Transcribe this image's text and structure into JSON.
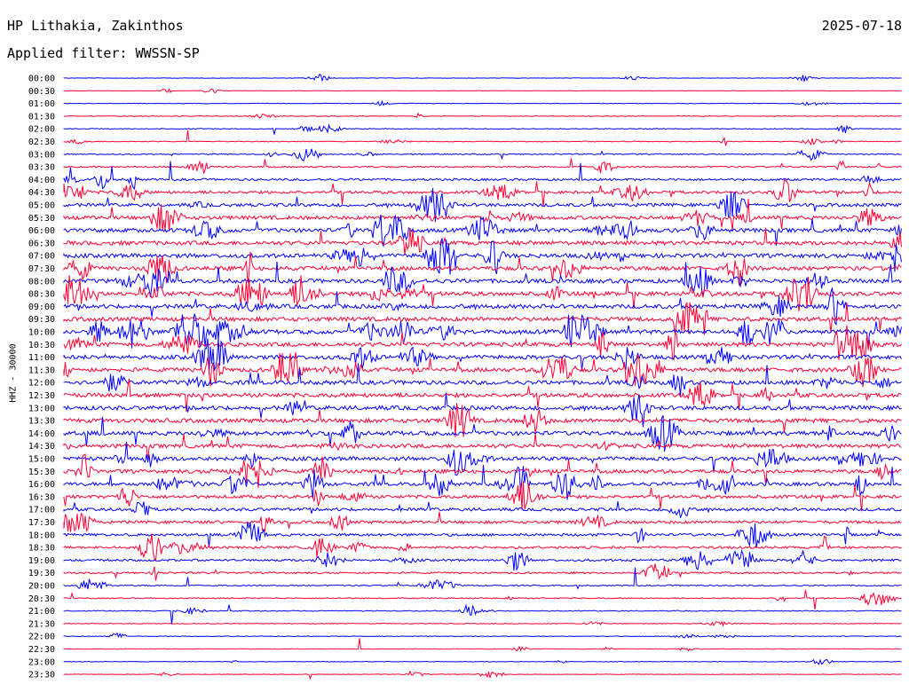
{
  "header": {
    "station": "HP Lithakia, Zakinthos",
    "date": "2025-07-18",
    "filter": "Applied filter: WWSSN-SP"
  },
  "chart_data": {
    "type": "line",
    "title": "HP Lithakia, Zakinthos",
    "ylabel": "HHZ - 30000",
    "row_labels": [
      "00:00",
      "00:30",
      "01:00",
      "01:30",
      "02:00",
      "02:30",
      "03:00",
      "03:30",
      "04:00",
      "04:30",
      "05:00",
      "05:30",
      "06:00",
      "06:30",
      "07:00",
      "07:30",
      "08:00",
      "08:30",
      "09:00",
      "09:30",
      "10:00",
      "10:30",
      "11:00",
      "11:30",
      "12:00",
      "12:30",
      "13:00",
      "13:30",
      "14:00",
      "14:30",
      "15:00",
      "15:30",
      "16:00",
      "16:30",
      "17:00",
      "17:30",
      "18:00",
      "18:30",
      "19:00",
      "19:30",
      "20:00",
      "20:30",
      "21:00",
      "21:30",
      "22:00",
      "22:30",
      "23:00",
      "23:30"
    ],
    "row_colors": [
      "#0000ff",
      "#ff0033"
    ],
    "relative_activity": [
      0.4,
      0.4,
      0.5,
      0.6,
      0.7,
      0.8,
      1.0,
      1.4,
      2.0,
      2.6,
      3.0,
      3.4,
      3.6,
      3.8,
      3.8,
      3.8,
      3.8,
      3.8,
      3.8,
      3.8,
      3.8,
      3.8,
      3.8,
      3.8,
      3.8,
      3.8,
      3.8,
      3.8,
      3.8,
      3.6,
      3.6,
      3.4,
      3.2,
      3.0,
      2.8,
      2.6,
      2.4,
      2.2,
      2.0,
      1.6,
      1.2,
      1.0,
      0.8,
      0.7,
      0.6,
      0.5,
      0.5,
      0.5
    ],
    "grid": false
  }
}
